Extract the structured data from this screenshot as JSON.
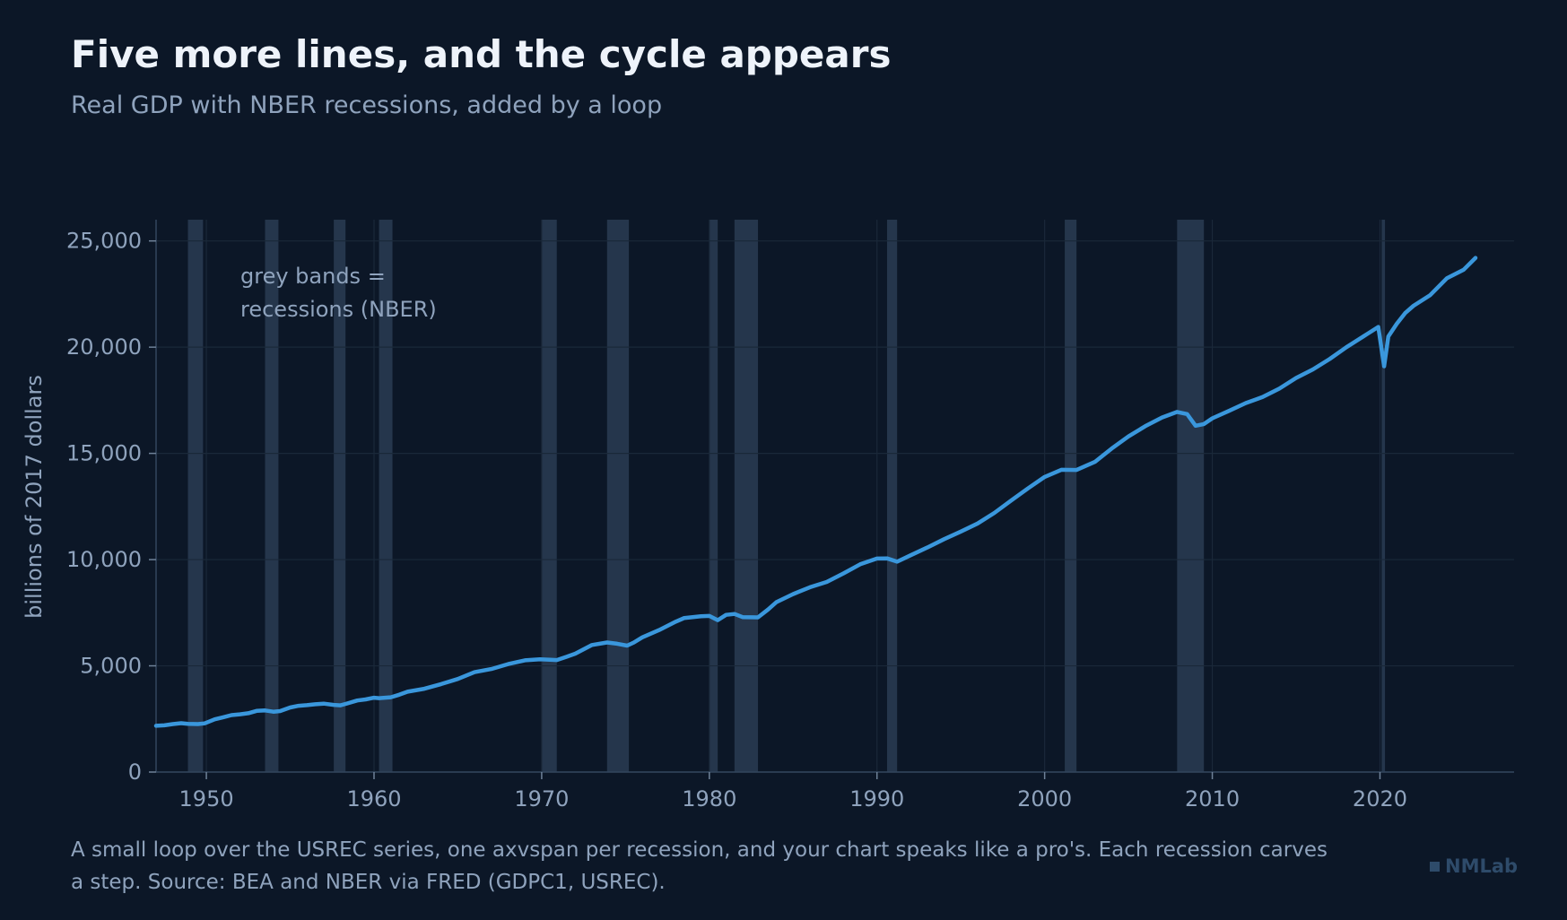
{
  "header": {
    "title": "Five more lines, and the cycle appears",
    "subtitle": "Real GDP with NBER recessions, added by a loop"
  },
  "footer": {
    "note": "A small loop over the USREC series, one axvspan per recession, and your chart speaks like a pro's. Each recession carves a step. Source: BEA and NBER via FRED (GDPC1, USREC).",
    "brand": "NMLab"
  },
  "colors": {
    "background": "#0c1727",
    "line": "#3a97dc",
    "recession_band": "#27384e",
    "grid": "#1a2839",
    "axis": "#33465e",
    "text_muted": "#8fa3bd",
    "text_title": "#eef3fa"
  },
  "chart_data": {
    "type": "line",
    "ylabel": "billions of 2017 dollars",
    "xlabel": "",
    "xlim": [
      1947,
      2028
    ],
    "ylim": [
      0,
      26000
    ],
    "x_ticks": [
      1950,
      1960,
      1970,
      1980,
      1990,
      2000,
      2010,
      2020
    ],
    "y_ticks": [
      0,
      5000,
      10000,
      15000,
      20000,
      25000
    ],
    "y_tick_labels": [
      "0",
      "5,000",
      "10,000",
      "15,000",
      "20,000",
      "25,000"
    ],
    "grid": true,
    "annotation": "grey bands =\nrecessions (NBER)",
    "recessions": [
      [
        1948.9,
        1949.8
      ],
      [
        1953.5,
        1954.3
      ],
      [
        1957.6,
        1958.3
      ],
      [
        1960.3,
        1961.1
      ],
      [
        1970.0,
        1970.9
      ],
      [
        1973.9,
        1975.2
      ],
      [
        1980.0,
        1980.5
      ],
      [
        1981.5,
        1982.9
      ],
      [
        1990.6,
        1991.2
      ],
      [
        2001.2,
        2001.9
      ],
      [
        2007.9,
        2009.5
      ],
      [
        2020.1,
        2020.3
      ]
    ],
    "series": [
      {
        "x": [
          1947.0,
          1947.5,
          1948.0,
          1948.5,
          1948.9,
          1949.5,
          1949.9,
          1950.5,
          1951.0,
          1951.5,
          1952.0,
          1952.5,
          1953.0,
          1953.5,
          1954.0,
          1954.4,
          1955.0,
          1955.5,
          1956.0,
          1956.5,
          1957.0,
          1957.6,
          1958.0,
          1958.4,
          1959.0,
          1959.5,
          1960.0,
          1960.3,
          1961.0,
          1961.5,
          1962.0,
          1963.0,
          1964.0,
          1965.0,
          1966.0,
          1967.0,
          1968.0,
          1969.0,
          1969.9,
          1970.5,
          1970.9,
          1971.5,
          1972.0,
          1973.0,
          1973.9,
          1974.5,
          1975.1,
          1975.5,
          1976.0,
          1977.0,
          1978.0,
          1978.5,
          1979.5,
          1980.0,
          1980.5,
          1981.0,
          1981.5,
          1982.0,
          1982.9,
          1983.5,
          1984.0,
          1985.0,
          1986.0,
          1987.0,
          1988.0,
          1989.0,
          1990.0,
          1990.6,
          1991.2,
          1992.0,
          1993.0,
          1994.0,
          1995.0,
          1996.0,
          1997.0,
          1998.0,
          1999.0,
          2000.0,
          2001.0,
          2001.9,
          2003.0,
          2004.0,
          2005.0,
          2006.0,
          2007.0,
          2007.9,
          2008.5,
          2009.0,
          2009.5,
          2010.0,
          2011.0,
          2012.0,
          2013.0,
          2014.0,
          2015.0,
          2016.0,
          2017.0,
          2018.0,
          2019.0,
          2019.9,
          2020.25,
          2020.5,
          2021.0,
          2021.5,
          2022.0,
          2023.0,
          2024.0,
          2025.0,
          2025.7
        ],
        "y": [
          2180,
          2200,
          2260,
          2300,
          2270,
          2260,
          2290,
          2480,
          2580,
          2680,
          2720,
          2770,
          2880,
          2900,
          2840,
          2870,
          3040,
          3120,
          3150,
          3190,
          3220,
          3160,
          3140,
          3230,
          3370,
          3420,
          3500,
          3480,
          3520,
          3640,
          3780,
          3920,
          4140,
          4380,
          4700,
          4850,
          5080,
          5260,
          5310,
          5290,
          5270,
          5430,
          5570,
          5980,
          6100,
          6040,
          5950,
          6100,
          6340,
          6680,
          7080,
          7250,
          7330,
          7350,
          7150,
          7400,
          7440,
          7290,
          7280,
          7650,
          8000,
          8380,
          8700,
          8950,
          9350,
          9780,
          10050,
          10060,
          9900,
          10200,
          10570,
          10960,
          11320,
          11700,
          12200,
          12780,
          13350,
          13890,
          14230,
          14220,
          14600,
          15230,
          15800,
          16280,
          16690,
          16950,
          16850,
          16300,
          16380,
          16650,
          17000,
          17370,
          17650,
          18050,
          18550,
          18950,
          19440,
          20000,
          20500,
          20950,
          19100,
          20500,
          21100,
          21600,
          21950,
          22450,
          23250,
          23650,
          24200
        ]
      }
    ]
  }
}
